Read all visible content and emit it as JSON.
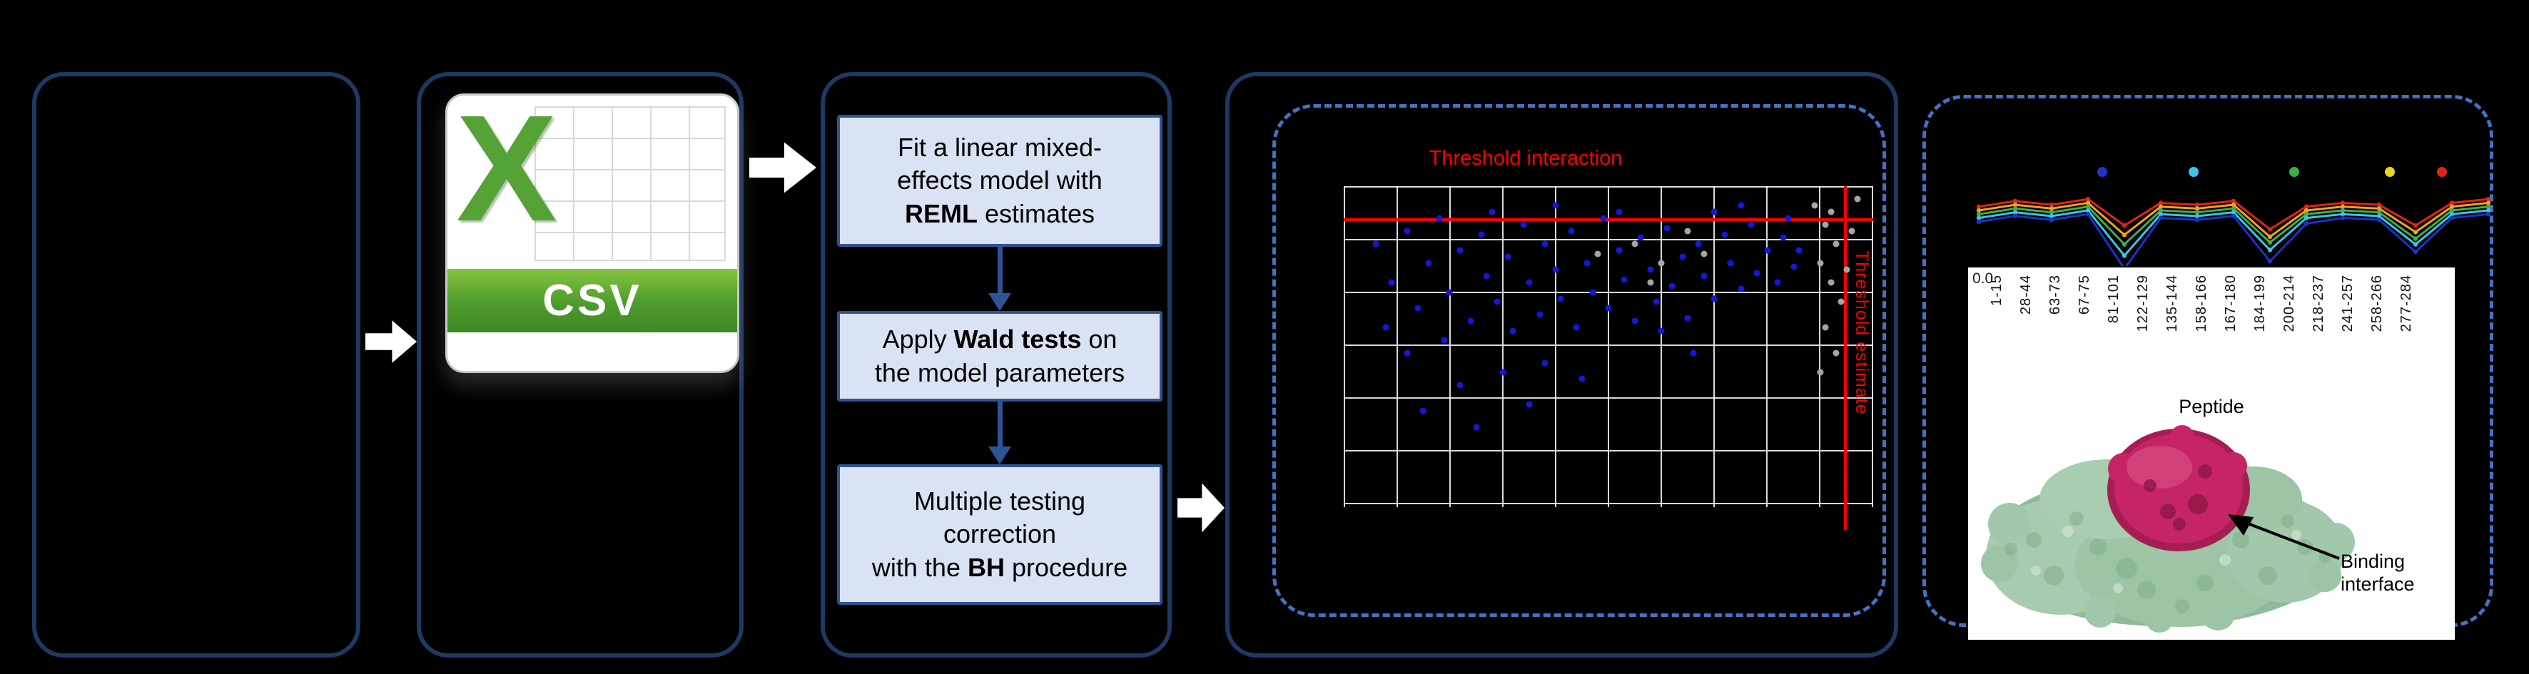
{
  "figure": {
    "background": "#000000",
    "panel_border_color": "#1f3864",
    "dashed_border_color": "#4472c4",
    "arrow_color": "#ffffff"
  },
  "csv_icon": {
    "x_letter": "X",
    "label": "CSV",
    "green": "#55a337",
    "banner_green": "#4d9a2d"
  },
  "flow": {
    "box_fill": "#dae3f3",
    "box_border": "#2e5496",
    "steps": [
      {
        "segments": [
          {
            "text": "Fit a linear mixed-\neffects model with\n",
            "bold": false
          },
          {
            "text": "REML",
            "bold": true
          },
          {
            "text": " estimates",
            "bold": false
          }
        ]
      },
      {
        "segments": [
          {
            "text": "Apply ",
            "bold": false
          },
          {
            "text": "Wald tests",
            "bold": true
          },
          {
            "text": " on\nthe model parameters",
            "bold": false
          }
        ]
      },
      {
        "segments": [
          {
            "text": "Multiple testing\ncorrection\nwith the ",
            "bold": false
          },
          {
            "text": "BH",
            "bold": true
          },
          {
            "text": " procedure",
            "bold": false
          }
        ]
      }
    ]
  },
  "chart_data": [
    {
      "type": "scatter",
      "title": "Threshold interaction",
      "title_color": "#ff0000",
      "grid": true,
      "point_color_blue": "#1616dd",
      "point_color_gray": "#a6a6a6",
      "threshold_lines": {
        "color": "#ff0000",
        "horizontal_y_pct": 10,
        "vertical_x_pct": 94.5,
        "vertical_label": "Threshold estimate"
      },
      "blue_points_pct": [
        [
          6,
          18
        ],
        [
          9,
          30
        ],
        [
          12,
          14
        ],
        [
          14,
          38
        ],
        [
          16,
          24
        ],
        [
          18,
          10
        ],
        [
          20,
          33
        ],
        [
          22,
          20
        ],
        [
          24,
          42
        ],
        [
          26,
          15
        ],
        [
          27,
          28
        ],
        [
          29,
          36
        ],
        [
          31,
          22
        ],
        [
          32,
          45
        ],
        [
          34,
          12
        ],
        [
          35,
          30
        ],
        [
          37,
          40
        ],
        [
          38,
          18
        ],
        [
          40,
          26
        ],
        [
          41,
          35
        ],
        [
          43,
          14
        ],
        [
          44,
          44
        ],
        [
          46,
          24
        ],
        [
          47,
          33
        ],
        [
          49,
          10
        ],
        [
          50,
          38
        ],
        [
          52,
          20
        ],
        [
          53,
          29
        ],
        [
          55,
          42
        ],
        [
          56,
          16
        ],
        [
          58,
          26
        ],
        [
          59,
          36
        ],
        [
          61,
          13
        ],
        [
          62,
          31
        ],
        [
          64,
          22
        ],
        [
          65,
          41
        ],
        [
          67,
          18
        ],
        [
          68,
          28
        ],
        [
          70,
          35
        ],
        [
          72,
          15
        ],
        [
          73,
          24
        ],
        [
          75,
          32
        ],
        [
          77,
          12
        ],
        [
          78,
          27
        ],
        [
          80,
          20
        ],
        [
          82,
          30
        ],
        [
          83,
          16
        ],
        [
          85,
          25
        ],
        [
          30,
          58
        ],
        [
          22,
          62
        ],
        [
          15,
          70
        ],
        [
          38,
          55
        ],
        [
          12,
          52
        ],
        [
          45,
          60
        ],
        [
          8,
          44
        ],
        [
          19,
          48
        ],
        [
          70,
          8
        ],
        [
          75,
          6
        ],
        [
          52,
          8
        ],
        [
          40,
          6
        ],
        [
          28,
          8
        ],
        [
          60,
          45
        ],
        [
          66,
          52
        ],
        [
          84,
          10
        ],
        [
          86,
          20
        ],
        [
          25,
          75
        ],
        [
          35,
          68
        ]
      ],
      "gray_points_pct": [
        [
          89,
          6
        ],
        [
          91,
          12
        ],
        [
          93,
          18
        ],
        [
          90,
          24
        ],
        [
          92,
          30
        ],
        [
          94,
          36
        ],
        [
          91,
          44
        ],
        [
          93,
          52
        ],
        [
          95,
          26
        ],
        [
          96,
          14
        ],
        [
          90,
          58
        ],
        [
          92,
          8
        ],
        [
          55,
          18
        ],
        [
          60,
          24
        ],
        [
          65,
          14
        ],
        [
          58,
          30
        ],
        [
          48,
          21
        ],
        [
          68,
          21
        ],
        [
          97,
          4
        ]
      ]
    },
    {
      "type": "line",
      "xlabel": "Peptide",
      "y_origin_label": "0.0",
      "x_labels": [
        "1-15",
        "28-44",
        "63-73",
        "67-75",
        "81-101",
        "122-129",
        "135-144",
        "158-166",
        "167-180",
        "184-199",
        "200-214",
        "218-237",
        "241-257",
        "258-266",
        "277-284"
      ],
      "legend_dot_colors": [
        "#2033cc",
        "#3ec6e8",
        "#3faf49",
        "#e8d51f",
        "#e32219"
      ],
      "legend_dot_x_pct": [
        30.4,
        46.6,
        64.4,
        81.4,
        90.6
      ],
      "series": [
        {
          "color": "#e32219",
          "values": [
            0.82,
            0.88,
            0.84,
            0.9,
            0.62,
            0.86,
            0.84,
            0.88,
            0.58,
            0.82,
            0.86,
            0.84,
            0.62,
            0.86,
            0.9
          ]
        },
        {
          "color": "#f5a01e",
          "values": [
            0.78,
            0.84,
            0.8,
            0.86,
            0.52,
            0.82,
            0.8,
            0.84,
            0.5,
            0.78,
            0.82,
            0.8,
            0.55,
            0.82,
            0.86
          ]
        },
        {
          "color": "#3faf49",
          "values": [
            0.74,
            0.8,
            0.76,
            0.82,
            0.42,
            0.78,
            0.76,
            0.8,
            0.44,
            0.74,
            0.78,
            0.76,
            0.48,
            0.78,
            0.82
          ]
        },
        {
          "color": "#35c8e8",
          "values": [
            0.7,
            0.76,
            0.72,
            0.78,
            0.3,
            0.74,
            0.72,
            0.76,
            0.36,
            0.7,
            0.74,
            0.72,
            0.42,
            0.74,
            0.78
          ]
        },
        {
          "color": "#2030c8",
          "values": [
            0.66,
            0.72,
            0.68,
            0.74,
            0.16,
            0.7,
            0.68,
            0.72,
            0.24,
            0.64,
            0.7,
            0.68,
            0.34,
            0.7,
            0.74
          ]
        }
      ]
    }
  ],
  "protein": {
    "surface_color": "#a4c8ac",
    "interface_color": "#c62565",
    "label": "Binding\ninterface"
  }
}
